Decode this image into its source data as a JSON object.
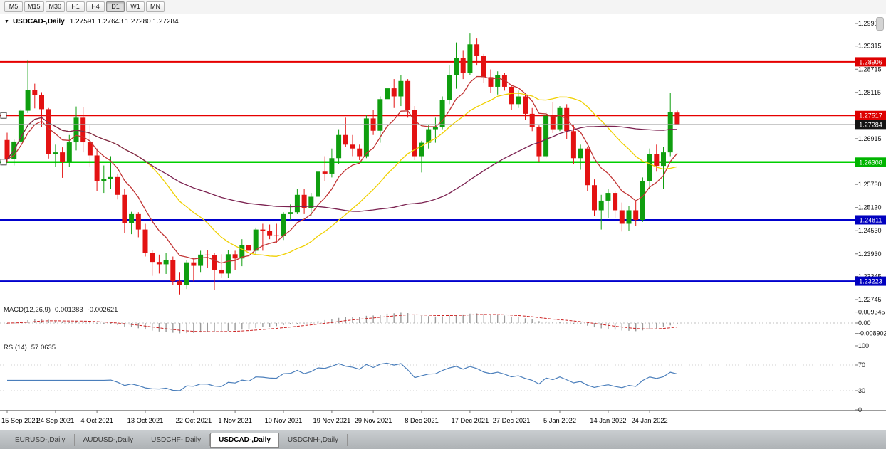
{
  "toolbar": {
    "timeframes": [
      "M5",
      "M15",
      "M30",
      "H1",
      "H4",
      "D1",
      "W1",
      "MN"
    ],
    "active": "D1"
  },
  "chart": {
    "title": {
      "dropdown_icon": "▼",
      "symbol": "USDCAD-,Daily",
      "ohlc": "1.27591 1.27643 1.27280 1.27284"
    },
    "macd_label": {
      "name": "MACD(12,26,9)",
      "main": "0.001283",
      "signal": "-0.002621"
    },
    "rsi_label": {
      "name": "RSI(14)",
      "value": "57.0635"
    }
  },
  "colors": {
    "bull": "#0f9e0f",
    "bear": "#e31212",
    "macd_hist": "#9a9a9a",
    "macd_signal": "#cc2222",
    "rsi_line": "#4a7ebb"
  },
  "chart_data": {
    "type": "candlestick",
    "symbol": "USDCAD",
    "timeframe": "Daily",
    "current_ohlc": {
      "open": 1.27591,
      "high": 1.27643,
      "low": 1.2728,
      "close": 1.27284
    },
    "candles": [
      [
        1.2688,
        1.2707,
        1.263,
        1.2638
      ],
      [
        1.2638,
        1.2689,
        1.2622,
        1.2684
      ],
      [
        1.2684,
        1.2768,
        1.2678,
        1.2764
      ],
      [
        1.2764,
        1.2896,
        1.2758,
        1.2818
      ],
      [
        1.2818,
        1.2834,
        1.277,
        1.2805
      ],
      [
        1.2805,
        1.2812,
        1.2722,
        1.2768
      ],
      [
        1.2768,
        1.2771,
        1.264,
        1.2652
      ],
      [
        1.2652,
        1.2676,
        1.2618,
        1.2656
      ],
      [
        1.2656,
        1.2669,
        1.259,
        1.2632
      ],
      [
        1.2632,
        1.2701,
        1.2619,
        1.2682
      ],
      [
        1.2682,
        1.2775,
        1.2661,
        1.2746
      ],
      [
        1.2746,
        1.2774,
        1.2656,
        1.2682
      ],
      [
        1.2682,
        1.2726,
        1.2619,
        1.2648
      ],
      [
        1.2648,
        1.2666,
        1.2556,
        1.2582
      ],
      [
        1.2582,
        1.2622,
        1.2551,
        1.2588
      ],
      [
        1.2588,
        1.2646,
        1.2562,
        1.2592
      ],
      [
        1.2592,
        1.2601,
        1.2534,
        1.2546
      ],
      [
        1.2546,
        1.2562,
        1.2446,
        1.2472
      ],
      [
        1.2472,
        1.2502,
        1.2444,
        1.2496
      ],
      [
        1.2496,
        1.2501,
        1.2436,
        1.2456
      ],
      [
        1.2456,
        1.2471,
        1.2386,
        1.2396
      ],
      [
        1.2396,
        1.2402,
        1.2336,
        1.2372
      ],
      [
        1.2372,
        1.2391,
        1.2342,
        1.2366
      ],
      [
        1.2366,
        1.2396,
        1.2341,
        1.2376
      ],
      [
        1.2376,
        1.2386,
        1.2312,
        1.2322
      ],
      [
        1.2322,
        1.2346,
        1.2288,
        1.2312
      ],
      [
        1.2312,
        1.2376,
        1.2302,
        1.2371
      ],
      [
        1.2371,
        1.2382,
        1.2322,
        1.2362
      ],
      [
        1.2362,
        1.2401,
        1.2346,
        1.2391
      ],
      [
        1.2391,
        1.2402,
        1.2356,
        1.2389
      ],
      [
        1.2389,
        1.2396,
        1.2299,
        1.2352
      ],
      [
        1.2352,
        1.2392,
        1.2332,
        1.2342
      ],
      [
        1.2342,
        1.2402,
        1.2331,
        1.2392
      ],
      [
        1.2392,
        1.2401,
        1.2352,
        1.2381
      ],
      [
        1.2381,
        1.2431,
        1.2361,
        1.2416
      ],
      [
        1.2416,
        1.2441,
        1.2381,
        1.2401
      ],
      [
        1.2401,
        1.2461,
        1.2391,
        1.2456
      ],
      [
        1.2456,
        1.2471,
        1.2401,
        1.2452
      ],
      [
        1.2452,
        1.2469,
        1.2431,
        1.2441
      ],
      [
        1.2441,
        1.2471,
        1.2421,
        1.2439
      ],
      [
        1.2439,
        1.2501,
        1.2429,
        1.2496
      ],
      [
        1.2496,
        1.2521,
        1.2481,
        1.2501
      ],
      [
        1.2501,
        1.2561,
        1.2496,
        1.2546
      ],
      [
        1.2546,
        1.2562,
        1.2496,
        1.2512
      ],
      [
        1.2512,
        1.2551,
        1.2491,
        1.2541
      ],
      [
        1.2541,
        1.2616,
        1.2531,
        1.2606
      ],
      [
        1.2606,
        1.2646,
        1.2581,
        1.2601
      ],
      [
        1.2601,
        1.2666,
        1.2591,
        1.2641
      ],
      [
        1.2641,
        1.2716,
        1.2626,
        1.2701
      ],
      [
        1.2701,
        1.2746,
        1.2671,
        1.2676
      ],
      [
        1.2676,
        1.2701,
        1.2646,
        1.2666
      ],
      [
        1.2666,
        1.2676,
        1.2636,
        1.2646
      ],
      [
        1.2646,
        1.2752,
        1.2641,
        1.2744
      ],
      [
        1.2744,
        1.2766,
        1.2701,
        1.2712
      ],
      [
        1.2712,
        1.2801,
        1.2681,
        1.2794
      ],
      [
        1.2794,
        1.2836,
        1.2746,
        1.2822
      ],
      [
        1.2822,
        1.2846,
        1.2771,
        1.2801
      ],
      [
        1.2801,
        1.2856,
        1.2776,
        1.2841
      ],
      [
        1.2841,
        1.2846,
        1.2746,
        1.2766
      ],
      [
        1.2766,
        1.2776,
        1.2636,
        1.2646
      ],
      [
        1.2646,
        1.2686,
        1.2604,
        1.2681
      ],
      [
        1.2681,
        1.2726,
        1.2666,
        1.2716
      ],
      [
        1.2716,
        1.2746,
        1.2681,
        1.2721
      ],
      [
        1.2721,
        1.2801,
        1.2716,
        1.2791
      ],
      [
        1.2791,
        1.2881,
        1.2781,
        1.2856
      ],
      [
        1.2856,
        1.2941,
        1.2821,
        1.2901
      ],
      [
        1.2901,
        1.2921,
        1.2846,
        1.2861
      ],
      [
        1.2861,
        1.2964,
        1.2856,
        1.2936
      ],
      [
        1.2936,
        1.2951,
        1.2881,
        1.2906
      ],
      [
        1.2906,
        1.2911,
        1.2836,
        1.2851
      ],
      [
        1.2851,
        1.2871,
        1.2811,
        1.2826
      ],
      [
        1.2826,
        1.2866,
        1.2806,
        1.2856
      ],
      [
        1.2856,
        1.2861,
        1.2816,
        1.2826
      ],
      [
        1.2826,
        1.2831,
        1.2766,
        1.2781
      ],
      [
        1.2781,
        1.2816,
        1.2771,
        1.2801
      ],
      [
        1.2801,
        1.2806,
        1.2741,
        1.2756
      ],
      [
        1.2756,
        1.2771,
        1.2711,
        1.2721
      ],
      [
        1.2721,
        1.2726,
        1.2631,
        1.2646
      ],
      [
        1.2646,
        1.2761,
        1.2641,
        1.2751
      ],
      [
        1.2751,
        1.2786,
        1.2706,
        1.2716
      ],
      [
        1.2716,
        1.2776,
        1.2711,
        1.2771
      ],
      [
        1.2771,
        1.2781,
        1.2691,
        1.2711
      ],
      [
        1.2711,
        1.2726,
        1.2626,
        1.2641
      ],
      [
        1.2641,
        1.2676,
        1.2611,
        1.2666
      ],
      [
        1.2666,
        1.2671,
        1.2556,
        1.2571
      ],
      [
        1.2571,
        1.2586,
        1.2491,
        1.2506
      ],
      [
        1.2506,
        1.2546,
        1.2456,
        1.2531
      ],
      [
        1.2531,
        1.2561,
        1.2486,
        1.2551
      ],
      [
        1.2551,
        1.2556,
        1.2486,
        1.2506
      ],
      [
        1.2506,
        1.2526,
        1.2451,
        1.2471
      ],
      [
        1.2471,
        1.2516,
        1.2453,
        1.2506
      ],
      [
        1.2506,
        1.2531,
        1.2466,
        1.2481
      ],
      [
        1.2481,
        1.2591,
        1.2476,
        1.2581
      ],
      [
        1.2581,
        1.2666,
        1.2561,
        1.2651
      ],
      [
        1.2651,
        1.2676,
        1.2606,
        1.2621
      ],
      [
        1.2621,
        1.2671,
        1.2561,
        1.2656
      ],
      [
        1.2656,
        1.2811,
        1.2646,
        1.2761
      ],
      [
        1.27591,
        1.27643,
        1.2728,
        1.27284
      ]
    ],
    "date_labels": [
      {
        "label": "15 Sep 2021",
        "index": 0
      },
      {
        "label": "24 Sep 2021",
        "index": 7
      },
      {
        "label": "4 Oct 2021",
        "index": 13
      },
      {
        "label": "13 Oct 2021",
        "index": 20
      },
      {
        "label": "22 Oct 2021",
        "index": 27
      },
      {
        "label": "1 Nov 2021",
        "index": 33
      },
      {
        "label": "10 Nov 2021",
        "index": 40
      },
      {
        "label": "19 Nov 2021",
        "index": 47
      },
      {
        "label": "29 Nov 2021",
        "index": 53
      },
      {
        "label": "8 Dec 2021",
        "index": 60
      },
      {
        "label": "17 Dec 2021",
        "index": 67
      },
      {
        "label": "27 Dec 2021",
        "index": 73
      },
      {
        "label": "5 Jan 2022",
        "index": 80
      },
      {
        "label": "14 Jan 2022",
        "index": 87
      },
      {
        "label": "24 Jan 2022",
        "index": 93
      }
    ],
    "price_axis": {
      "regular": [
        "1.29900",
        "1.29315",
        "1.28715",
        "1.28115",
        "1.26915",
        "1.25730",
        "1.25130",
        "1.24530",
        "1.23930",
        "1.23345",
        "1.22745"
      ]
    },
    "hlines": [
      {
        "price": 1.28906,
        "label": "1.28906",
        "color": "#e60000",
        "badge_color": "#dd0000",
        "thickness": 2,
        "handle": false
      },
      {
        "price": 1.27517,
        "label": "1.27517",
        "color": "#e60000",
        "badge_color": "#dd0000",
        "thickness": 2,
        "handle": true
      },
      {
        "price": 1.26308,
        "label": "1.26308",
        "color": "#00cf00",
        "badge_color": "#00b400",
        "thickness": 2.5,
        "handle": true
      },
      {
        "price": 1.24811,
        "label": "1.24811",
        "color": "#0000cd",
        "badge_color": "#0000bf",
        "thickness": 2,
        "handle": false
      },
      {
        "price": 1.23223,
        "label": "1.23223",
        "color": "#0000cd",
        "badge_color": "#0000bf",
        "thickness": 2,
        "handle": false
      }
    ],
    "current_price": {
      "value": 1.27284,
      "label": "1.27284",
      "badge_color": "#141414"
    },
    "moving_averages": [
      {
        "period": 8,
        "type": "ema",
        "color": "#c13434"
      },
      {
        "period": 20,
        "type": "sma",
        "color": "#f0d000"
      },
      {
        "period": 45,
        "type": "sma",
        "color": "#7b2150"
      }
    ],
    "macd": {
      "fast": 12,
      "slow": 26,
      "signal": 9,
      "axis_labels": [
        {
          "text": "0.009345",
          "value": 0.009345
        },
        {
          "text": "0.00",
          "value": 0
        },
        {
          "text": "-0.008902",
          "value": -0.008902
        }
      ]
    },
    "rsi": {
      "period": 14,
      "levels": [
        100,
        70,
        30,
        0
      ]
    }
  },
  "tabs": {
    "items": [
      "EURUSD-,Daily",
      "AUDUSD-,Daily",
      "USDCHF-,Daily",
      "USDCAD-,Daily",
      "USDCNH-,Daily"
    ],
    "active_index": 3
  }
}
